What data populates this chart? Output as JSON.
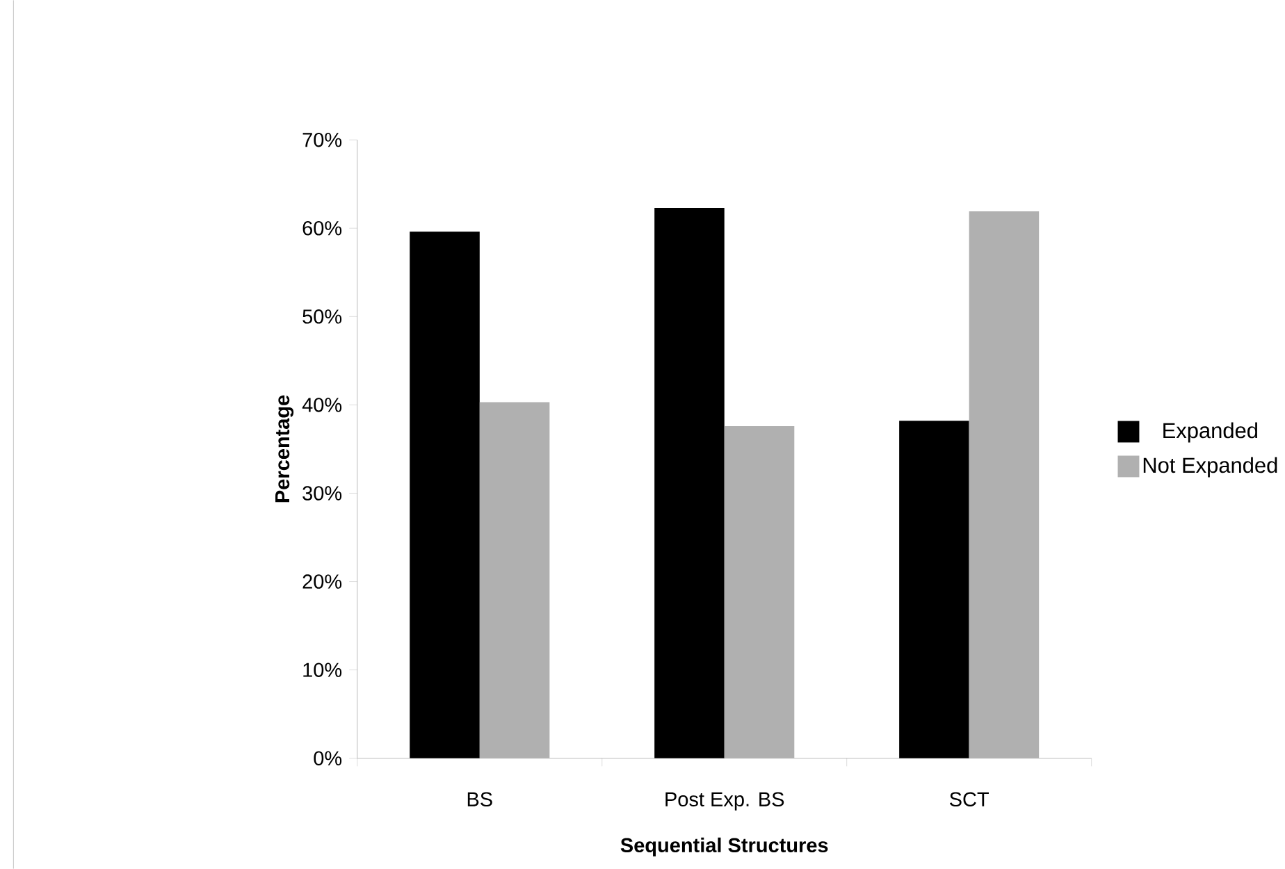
{
  "chart_data": {
    "type": "bar",
    "xlabel": "Sequential Structures",
    "ylabel": "Percentage",
    "categories": [
      "BS",
      "Post Exp. BS",
      "SCT"
    ],
    "series": [
      {
        "name": "Expanded",
        "color": "#000000",
        "values": [
          59.6,
          62.3,
          38.2
        ]
      },
      {
        "name": "Not Expanded",
        "color": "#b0b0b0",
        "values": [
          40.3,
          37.6,
          61.9
        ]
      }
    ],
    "ylim": [
      0,
      70
    ],
    "yticks": [
      {
        "value": 0,
        "label": "0%"
      },
      {
        "value": 10,
        "label": "10%"
      },
      {
        "value": 20,
        "label": "20%"
      },
      {
        "value": 30,
        "label": "30%"
      },
      {
        "value": 40,
        "label": "40%"
      },
      {
        "value": 50,
        "label": "50%"
      },
      {
        "value": 60,
        "label": "60%"
      },
      {
        "value": 70,
        "label": "70%"
      }
    ],
    "grid": false,
    "legend": "right"
  }
}
